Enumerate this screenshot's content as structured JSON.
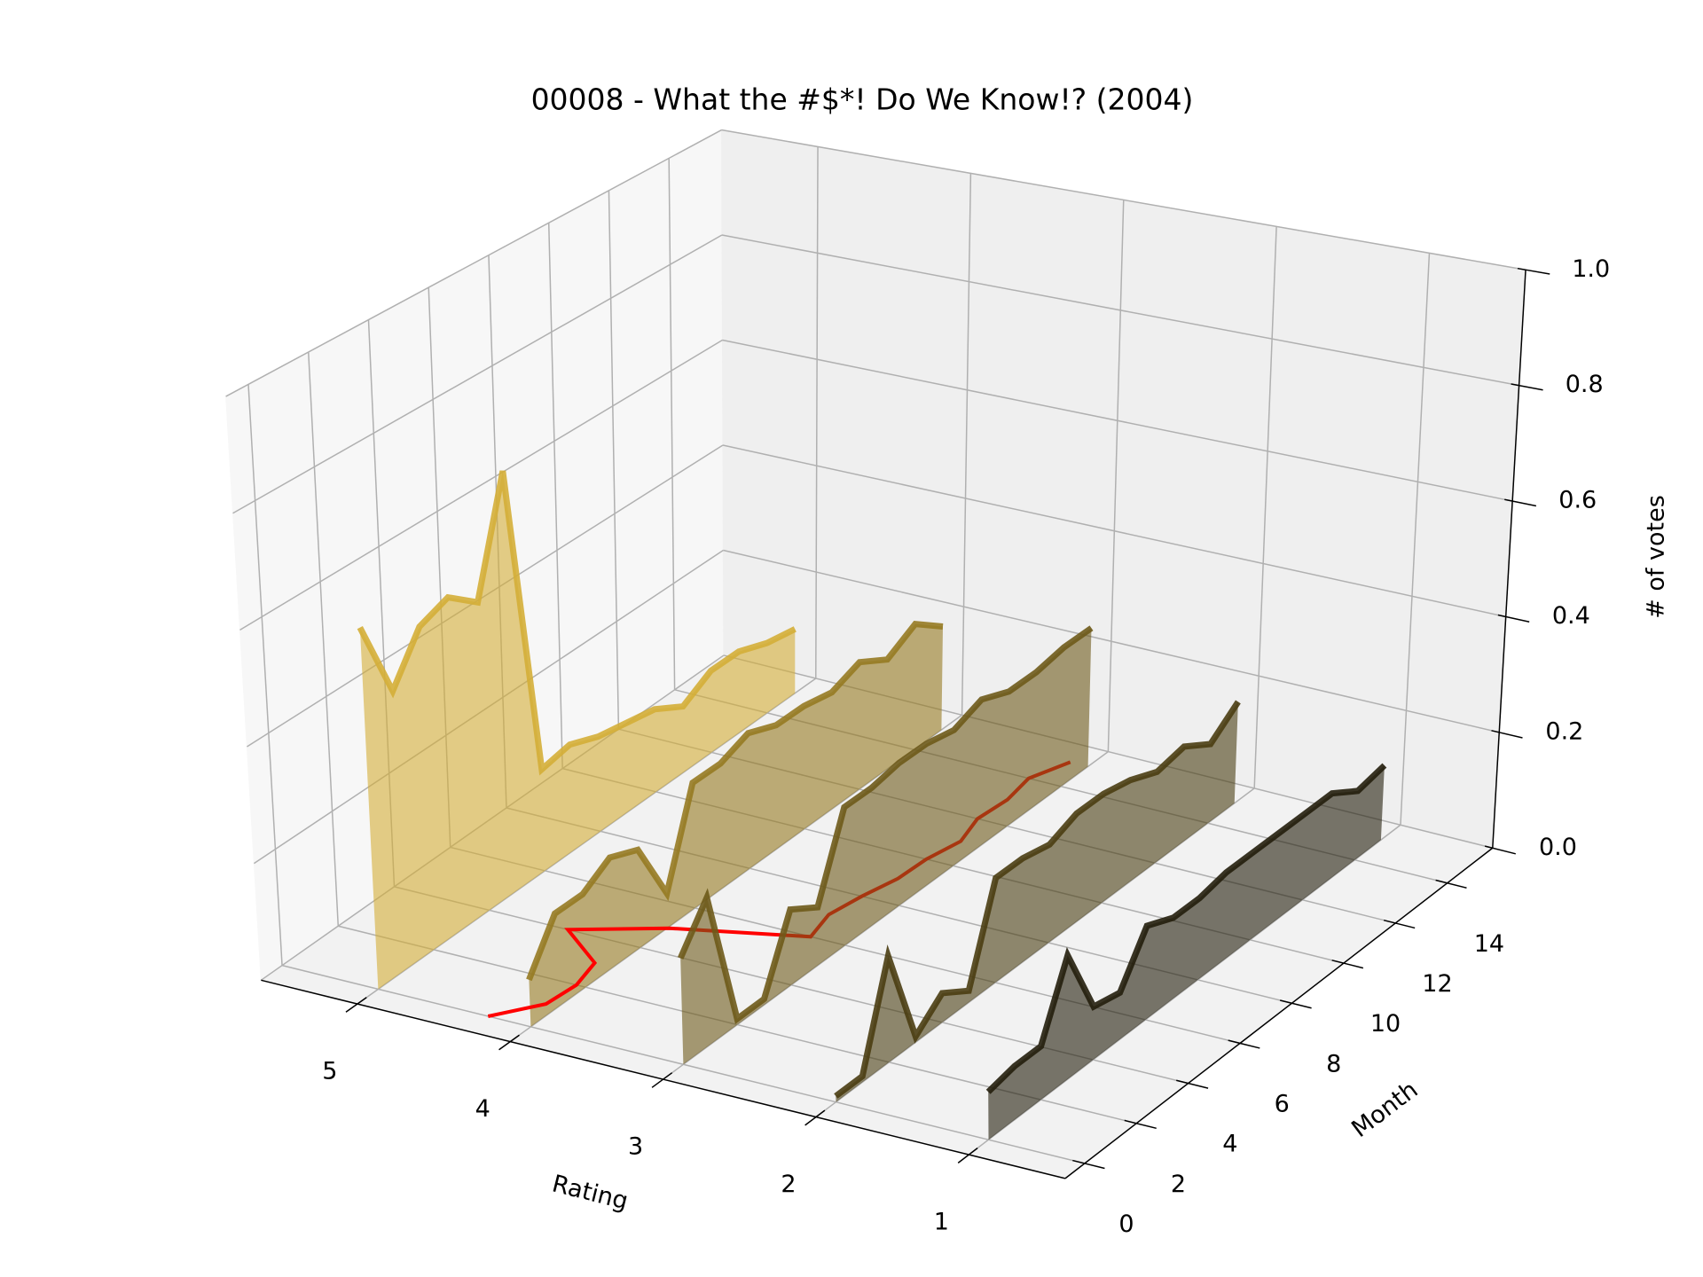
{
  "chart_data": {
    "type": "line3d",
    "title": "00008 - What the #$*! Do We Know!? (2004)",
    "xlabel": "Rating",
    "ylabel": "Month",
    "zlabel": "# of votes",
    "x": [
      0,
      1,
      2,
      3,
      4,
      5,
      6,
      7,
      8,
      9,
      10,
      11,
      12,
      13,
      14,
      15
    ],
    "series": [
      {
        "rating": 5,
        "color": "#d4ae37",
        "values": [
          0.62,
          0.48,
          0.56,
          0.58,
          0.54,
          0.74,
          0.18,
          0.19,
          0.17,
          0.16,
          0.15,
          0.12,
          0.15,
          0.15,
          0.13,
          0.12
        ]
      },
      {
        "rating": 4,
        "color": "#967a22",
        "values": [
          0.08,
          0.16,
          0.16,
          0.19,
          0.17,
          0.06,
          0.22,
          0.22,
          0.24,
          0.22,
          0.22,
          0.21,
          0.23,
          0.2,
          0.23,
          0.19
        ]
      },
      {
        "rating": 3,
        "color": "#6e5a1a",
        "values": [
          0.18,
          0.25,
          0.01,
          0.01,
          0.13,
          0.1,
          0.24,
          0.24,
          0.25,
          0.25,
          0.24,
          0.26,
          0.24,
          0.24,
          0.25,
          0.25
        ]
      },
      {
        "rating": 2,
        "color": "#4a3d12",
        "values": [
          0.01,
          0.01,
          0.18,
          0.01,
          0.05,
          0.02,
          0.18,
          0.18,
          0.17,
          0.19,
          0.19,
          0.18,
          0.16,
          0.17,
          0.14,
          0.18
        ]
      },
      {
        "rating": 1,
        "color": "#231e0c",
        "values": [
          0.08,
          0.09,
          0.09,
          0.21,
          0.09,
          0.08,
          0.16,
          0.14,
          0.14,
          0.15,
          0.15,
          0.15,
          0.15,
          0.15,
          0.12,
          0.13
        ]
      }
    ],
    "mean_rating": {
      "color": "#ff0000",
      "values": [
        4.28,
        4.08,
        4.06,
        4.12,
        4.48,
        3.99,
        3.23,
        3.29,
        3.25,
        3.19,
        3.18,
        3.13,
        3.2,
        3.18,
        3.22,
        3.12
      ]
    },
    "xlim": [
      0.37,
      5.63
    ],
    "x_inverted": true,
    "xticks": [
      1,
      2,
      3,
      4,
      5
    ],
    "ylim": [
      -0.75,
      15.75
    ],
    "yticks": [
      0,
      2,
      4,
      6,
      8,
      10,
      12,
      14
    ],
    "zlim": [
      0,
      1
    ],
    "zticks": [
      {
        "value": 0,
        "label": "0.0"
      },
      0.2,
      0.4,
      0.6,
      0.8,
      {
        "value": 1,
        "label": "1.0"
      }
    ],
    "grid": true
  }
}
